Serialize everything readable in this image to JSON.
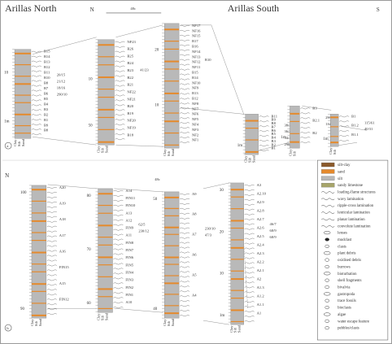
{
  "panel_a": {
    "title_north": "Arillas North",
    "title_south": "Arillas South",
    "letter": "a",
    "compass_n": "N",
    "compass_s": "S",
    "label_48c": "48c",
    "columns": [
      {
        "id": "north",
        "labels": [
          "B15",
          "B14",
          "B13",
          "B12",
          "B11",
          "B10",
          "B8",
          "B7",
          "B6",
          "B5",
          "B4",
          "B3",
          "B2",
          "B1",
          "B9",
          "B8"
        ],
        "notes": [
          "20/15",
          "21/12",
          "18/16",
          "290/10"
        ]
      },
      {
        "id": "a2",
        "labels": [
          "NF23",
          "B26",
          "B25",
          "B24",
          "B23",
          "B22",
          "B21",
          "NF22",
          "NF21",
          "B20",
          "B19",
          "NF20",
          "NF19",
          "B18"
        ],
        "notes": [
          "41/23"
        ]
      },
      {
        "id": "a3",
        "labels": [
          "NF17",
          "NF16",
          "NF15",
          "B17",
          "B16",
          "NF14",
          "NF13",
          "NF12",
          "NF11",
          "B15",
          "B14",
          "NF10",
          "NF9",
          "B13",
          "B12",
          "NF8",
          "NF7",
          "NF6",
          "NF5",
          "NF4",
          "NF3",
          "NF2",
          "NF1"
        ],
        "notes": [
          "B10"
        ]
      },
      {
        "id": "a4",
        "labels": [
          "B11",
          "B9",
          "B8",
          "B7",
          "B6",
          "B5",
          "B4",
          "B3",
          "B2",
          "B1"
        ],
        "notes": [
          "38/30",
          "36/33",
          "34/15",
          "290/10"
        ]
      },
      {
        "id": "a5",
        "labels": [
          "B3",
          "B2.1",
          "B2"
        ],
        "notes": [
          "29/14",
          "112/42"
        ]
      },
      {
        "id": "a6",
        "labels": [
          "B1",
          "B1.2",
          "B1.1"
        ],
        "notes": [
          "115/61",
          "40/31"
        ]
      }
    ],
    "axis_ticks": [
      {
        "label": "10"
      },
      {
        "label": "1m"
      },
      {
        "label": "10"
      },
      {
        "label": "50"
      },
      {
        "label": "20"
      },
      {
        "label": "10"
      },
      {
        "label": "1m"
      },
      {
        "label": "1m"
      },
      {
        "label": "1m"
      }
    ]
  },
  "panel_b": {
    "letter": "b",
    "compass_n": "N",
    "label_48c": "48c",
    "columns": [
      {
        "id": "b1",
        "labels": [
          "A20",
          "A19",
          "A18",
          "A17",
          "A16",
          "FIN15",
          "A15",
          "FIN12"
        ],
        "ticks": [
          "100",
          "90"
        ]
      },
      {
        "id": "b2",
        "labels": [
          "A14",
          "FIN11",
          "FIN10",
          "A13",
          "A12",
          "FIN9",
          "A11",
          "FIN8",
          "FIN7",
          "FIN6",
          "FIN5",
          "FIN4",
          "FIN3",
          "FIN2",
          "FIN1",
          "A10"
        ],
        "ticks": [
          "80",
          "70",
          "60"
        ],
        "notes": [
          "62/5",
          "230/12"
        ]
      },
      {
        "id": "b3",
        "labels": [
          "A9",
          "A8",
          "A7",
          "A6",
          "A5",
          "A4"
        ],
        "ticks": [
          "50",
          "40"
        ],
        "notes": [
          "230/10",
          "47/3"
        ]
      },
      {
        "id": "b4",
        "labels": [
          "A3",
          "A2.10",
          "A2.9",
          "A2.8",
          "A2.7",
          "A2.6",
          "A2.5",
          "A2.4",
          "A2.3",
          "A2.2",
          "A2.1",
          "A2",
          "A1.3",
          "A1.2",
          "A1.1",
          "A1"
        ],
        "ticks": [
          "30",
          "20",
          "10",
          "1m"
        ],
        "notes": [
          "46/7",
          "68/9",
          "68/9"
        ]
      }
    ],
    "grain_labels": [
      "Clay",
      "Silt",
      "Sand",
      "Congl."
    ]
  },
  "legend": {
    "items": [
      {
        "label": "silt-clay"
      },
      {
        "label": "sand"
      },
      {
        "label": "silt"
      },
      {
        "label": "sandy limestone"
      },
      {
        "label": "loading-flame structures"
      },
      {
        "label": "wavy lamination"
      },
      {
        "label": "ripple-cross lamination"
      },
      {
        "label": "lenticular lamination"
      },
      {
        "label": "planar lamination"
      },
      {
        "label": "convolute lamination"
      },
      {
        "label": "lenses"
      },
      {
        "label": "mudclast"
      },
      {
        "label": "clasts"
      },
      {
        "label": "plant debris"
      },
      {
        "label": "oxidised debris"
      },
      {
        "label": "burrows"
      },
      {
        "label": "bioturbation"
      },
      {
        "label": "shell fragments"
      },
      {
        "label": "bivalvia"
      },
      {
        "label": "gastropoda"
      },
      {
        "label": "trace fossils"
      },
      {
        "label": "bioclasts"
      },
      {
        "label": "algae"
      },
      {
        "label": "water escape feature"
      },
      {
        "label": "pebbles/clasts"
      }
    ]
  },
  "colors": {
    "grey": "#b9b9b9",
    "orange": "#e58a2c",
    "brown": "#8b5a2b",
    "olive": "#a7a56a",
    "black": "#222222"
  }
}
